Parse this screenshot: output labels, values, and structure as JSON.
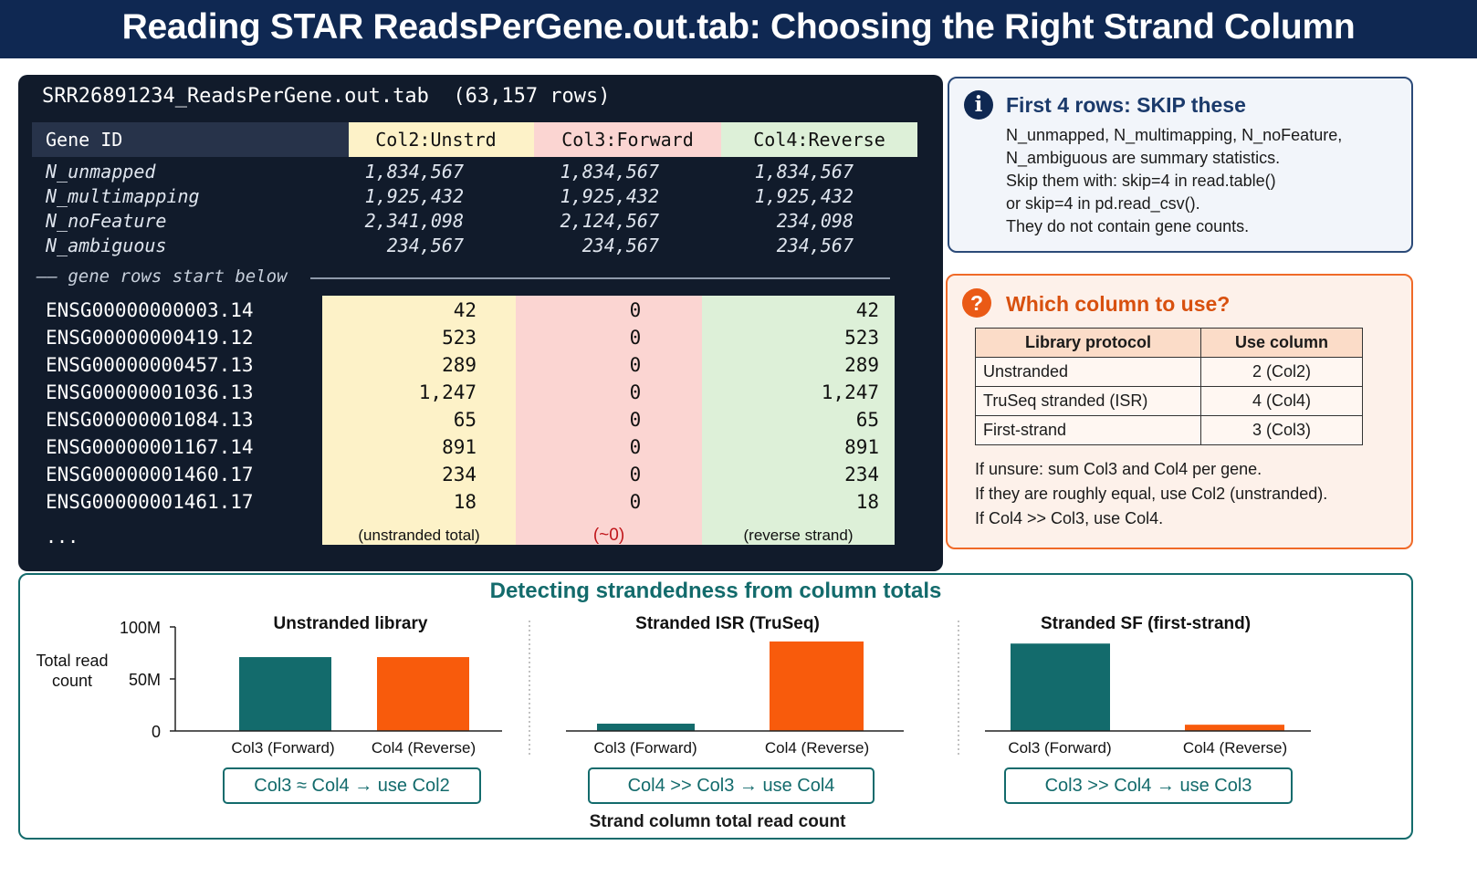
{
  "header": {
    "title": "Reading STAR ReadsPerGene.out.tab: Choosing the Right Strand Column"
  },
  "terminal": {
    "filename": "SRR26891234_ReadsPerGene.out.tab",
    "row_count": "(63,157 rows)",
    "columns": {
      "gene": "Gene ID",
      "col2": "Col2:Unstrd",
      "col3": "Col3:Forward",
      "col4": "Col4:Reverse"
    },
    "stats": [
      {
        "name": "N_unmapped",
        "col2": "1,834,567",
        "col3": "1,834,567",
        "col4": "1,834,567"
      },
      {
        "name": "N_multimapping",
        "col2": "1,925,432",
        "col3": "1,925,432",
        "col4": "1,925,432"
      },
      {
        "name": "N_noFeature",
        "col2": "2,341,098",
        "col3": "2,124,567",
        "col4": "234,098"
      },
      {
        "name": "N_ambiguous",
        "col2": "234,567",
        "col3": "234,567",
        "col4": "234,567"
      }
    ],
    "separator": "—— gene rows start below",
    "genes": [
      {
        "id": "ENSG00000000003.14",
        "col2": "42",
        "col3": "0",
        "col4": "42"
      },
      {
        "id": "ENSG00000000419.12",
        "col2": "523",
        "col3": "0",
        "col4": "523"
      },
      {
        "id": "ENSG00000000457.13",
        "col2": "289",
        "col3": "0",
        "col4": "289"
      },
      {
        "id": "ENSG00000001036.13",
        "col2": "1,247",
        "col3": "0",
        "col4": "1,247"
      },
      {
        "id": "ENSG00000001084.13",
        "col2": "65",
        "col3": "0",
        "col4": "65"
      },
      {
        "id": "ENSG00000001167.14",
        "col2": "891",
        "col3": "0",
        "col4": "891"
      },
      {
        "id": "ENSG00000001460.17",
        "col2": "234",
        "col3": "0",
        "col4": "234"
      },
      {
        "id": "ENSG00000001461.17",
        "col2": "18",
        "col3": "0",
        "col4": "18"
      }
    ],
    "ellipsis": "...",
    "footer": {
      "col2": "(unstranded total)",
      "col3": "(~0)",
      "col4": "(reverse strand)"
    }
  },
  "info": {
    "icon": "info-icon",
    "title": "First 4 rows: SKIP these",
    "lines": [
      "N_unmapped, N_multimapping, N_noFeature,",
      "N_ambiguous are summary statistics.",
      "Skip them with: skip=4 in read.table()",
      "or skip=4 in pd.read_csv().",
      "They do not contain gene counts."
    ]
  },
  "which": {
    "icon": "question-icon",
    "title": "Which column to use?",
    "table_headers": [
      "Library protocol",
      "Use column"
    ],
    "rows": [
      {
        "protocol": "Unstranded",
        "column": "2  (Col2)"
      },
      {
        "protocol": "TruSeq stranded (ISR)",
        "column": "4  (Col4)"
      },
      {
        "protocol": "First-strand",
        "column": "3  (Col3)"
      }
    ],
    "notes": [
      "If unsure: sum Col3 and Col4 per gene.",
      "If they are roughly equal, use Col2 (unstranded).",
      "If Col4 >> Col3, use Col4."
    ]
  },
  "colors": {
    "navy": "#0f2852",
    "teal": "#136b6c",
    "orange": "#f85b0c",
    "col2_bg": "#fdf2c8",
    "col3_bg": "#fbd5d2",
    "col4_bg": "#ddf0d8"
  },
  "chart_data": {
    "type": "bar",
    "title": "Detecting strandedness from column totals",
    "xlabel": "Strand column total read count",
    "ylabel": "Total read count",
    "ylim": [
      0,
      100
    ],
    "yticks": [
      {
        "value": 0,
        "label": "0"
      },
      {
        "value": 50,
        "label": "50M"
      },
      {
        "value": 100,
        "label": "100M"
      }
    ],
    "categories": [
      "Col3 (Forward)",
      "Col4 (Reverse)"
    ],
    "grid": false,
    "panels": [
      {
        "title": "Unstranded library",
        "values": [
          71,
          71
        ],
        "verdict": "Col3 ≈ Col4 → use Col2"
      },
      {
        "title": "Stranded ISR (TruSeq)",
        "values": [
          7,
          86
        ],
        "verdict": "Col4 >> Col3 → use Col4"
      },
      {
        "title": "Stranded SF (first-strand)",
        "values": [
          84,
          6
        ],
        "verdict": "Col3 >> Col4 → use Col3"
      }
    ]
  }
}
